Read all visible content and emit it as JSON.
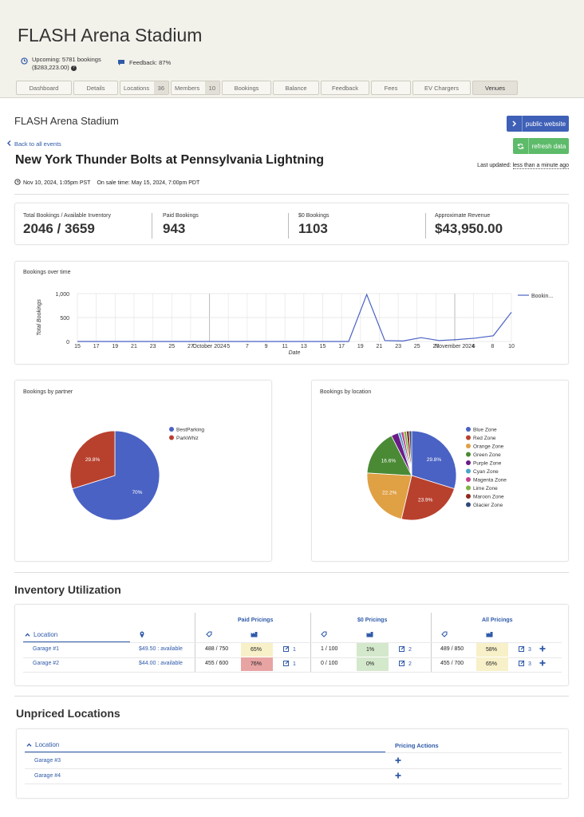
{
  "venue": {
    "title": "FLASH Arena Stadium",
    "upcoming": "Upcoming: 5781 bookings",
    "upcoming_amount": "($283,223.00)",
    "feedback": "Feedback: 87%"
  },
  "tabs": [
    {
      "label": "Dashboard"
    },
    {
      "label": "Details"
    },
    {
      "label": "Locations",
      "count": "36"
    },
    {
      "label": "Members",
      "count": "10"
    },
    {
      "label": "Bookings"
    },
    {
      "label": "Balance"
    },
    {
      "label": "Feedback"
    },
    {
      "label": "Fees"
    },
    {
      "label": "EV Chargers"
    },
    {
      "label": "Venues"
    }
  ],
  "page": {
    "venue_name": "FLASH Arena Stadium",
    "back_link": "Back to all events",
    "event_title": "New York Thunder Bolts at Pennsylvania Lightning",
    "event_date": "Nov 10, 2024, 1:05pm PST",
    "on_sale": "On sale time: May 15, 2024, 7:00pm PDT",
    "last_updated_label": "Last updated:",
    "last_updated_value": "less than a minute ago",
    "public_website": "public website",
    "refresh_data": "refresh data"
  },
  "metrics": [
    {
      "label": "Total Bookings / Available Inventory",
      "value": "2046 / 3659"
    },
    {
      "label": "Paid Bookings",
      "value": "943"
    },
    {
      "label": "$0 Bookings",
      "value": "1103"
    },
    {
      "label": "Approximate Revenue",
      "value": "$43,950.00"
    }
  ],
  "colors": {
    "blue": "#4a62c4",
    "red": "#b8412e",
    "orange": "#e0a044",
    "green": "#4a8a35",
    "purple": "#6a1c86",
    "cyan": "#4aa3c9",
    "magenta": "#c2408a",
    "lime": "#7eb347",
    "maroon": "#8b2a1c",
    "glacier": "#2f4a7a"
  },
  "chart_data": [
    {
      "type": "line",
      "title": "Bookings over time",
      "xlabel": "Date",
      "ylabel": "Total Bookings",
      "ylim": [
        0,
        1000
      ],
      "yticks": [
        "1,000",
        "500",
        "0"
      ],
      "xticks": [
        "15",
        "17",
        "19",
        "21",
        "23",
        "25",
        "27",
        "October 2024",
        "5",
        "7",
        "9",
        "11",
        "13",
        "15",
        "17",
        "19",
        "21",
        "23",
        "25",
        "27",
        "November 2024",
        "6",
        "8",
        "10"
      ],
      "series": [
        {
          "name": "Bookin...",
          "x": [
            0,
            10,
            20,
            30,
            40,
            50,
            60,
            70,
            75,
            80,
            85,
            90,
            95,
            100,
            105,
            110,
            115,
            120
          ],
          "values": [
            0,
            0,
            0,
            0,
            0,
            0,
            0,
            0,
            0,
            980,
            20,
            10,
            80,
            20,
            40,
            70,
            120,
            610
          ]
        }
      ]
    },
    {
      "type": "pie",
      "title": "Bookings by partner",
      "labels": [
        "BestParking",
        "ParkWhiz"
      ],
      "values": [
        70.2,
        29.8
      ],
      "label_text": [
        "70%",
        "29.8%"
      ]
    },
    {
      "type": "pie",
      "title": "Bookings by location",
      "labels": [
        "Blue Zone",
        "Red Zone",
        "Orange Zone",
        "Green Zone",
        "Purple Zone",
        "Cyan Zone",
        "Magenta Zone",
        "Lime Zone",
        "Maroon Zone",
        "Glacier Zone"
      ],
      "values": [
        29.8,
        23.9,
        22.2,
        16.6,
        2.6,
        1.0,
        1.0,
        1.0,
        1.0,
        0.9
      ],
      "label_text": [
        "29.8%",
        "23.9%",
        "22.2%",
        "16.6%",
        "",
        "",
        "",
        "",
        "",
        ""
      ]
    }
  ],
  "inventory": {
    "title": "Inventory Utilization",
    "groups": [
      "Paid Pricings",
      "$0 Pricings",
      "All Pricings"
    ],
    "location_header": "Location",
    "rows": [
      {
        "name": "Garage #1",
        "price": "$49.50 : available",
        "paid": "488 / 750",
        "paid_pct": "65%",
        "paid_n": "1",
        "zero": "1 / 100",
        "zero_pct": "1%",
        "zero_n": "2",
        "all": "489 / 850",
        "all_pct": "58%",
        "all_n": "3"
      },
      {
        "name": "Garage #2",
        "price": "$44.00 : available",
        "paid": "455 / 600",
        "paid_pct": "76%",
        "paid_n": "1",
        "zero": "0 / 100",
        "zero_pct": "0%",
        "zero_n": "2",
        "all": "455 / 700",
        "all_pct": "65%",
        "all_n": "3"
      }
    ]
  },
  "unpriced": {
    "title": "Unpriced Locations",
    "location_header": "Location",
    "actions_header": "Pricing Actions",
    "rows": [
      {
        "name": "Garage #3"
      },
      {
        "name": "Garage #4"
      }
    ]
  }
}
